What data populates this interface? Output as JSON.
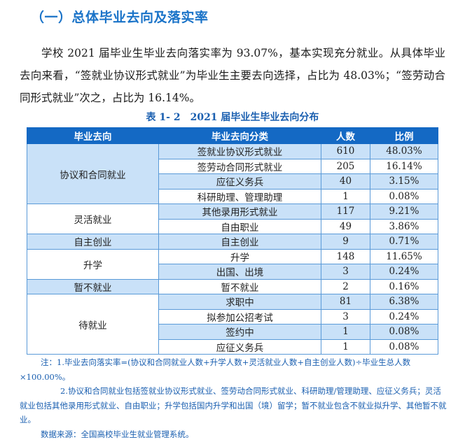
{
  "section": {
    "title": "（一）总体毕业去向及落实率"
  },
  "paragraph": "学校 2021 届毕业生毕业去向落实率为 93.07%，基本实现充分就业。从具体毕业去向来看，“签就业协议形式就业”为毕业生主要去向选择，占比为 48.03%；“签劳动合同形式就业”次之，占比为 16.14%。",
  "table": {
    "caption": "表 1- 2　2021 届毕业生毕业去向分布",
    "headers": [
      "毕业去向",
      "毕业去向分类",
      "人数",
      "比例"
    ],
    "colors": {
      "header_bg": "#1469c4",
      "shaded_bg": "#c9e1f8",
      "border": "#5a9ad8"
    },
    "groups": [
      {
        "label": "协议和合同就业",
        "rows": [
          {
            "category": "签就业协议形式就业",
            "count": "610",
            "percent": "48.03%"
          },
          {
            "category": "签劳动合同形式就业",
            "count": "205",
            "percent": "16.14%"
          },
          {
            "category": "应征义务兵",
            "count": "40",
            "percent": "3.15%"
          },
          {
            "category": "科研助理、管理助理",
            "count": "1",
            "percent": "0.08%"
          }
        ]
      },
      {
        "label": "灵活就业",
        "rows": [
          {
            "category": "其他录用形式就业",
            "count": "117",
            "percent": "9.21%"
          },
          {
            "category": "自由职业",
            "count": "49",
            "percent": "3.86%"
          }
        ]
      },
      {
        "label": "自主创业",
        "rows": [
          {
            "category": "自主创业",
            "count": "9",
            "percent": "0.71%"
          }
        ]
      },
      {
        "label": "升学",
        "rows": [
          {
            "category": "升学",
            "count": "148",
            "percent": "11.65%"
          },
          {
            "category": "出国、出境",
            "count": "3",
            "percent": "0.24%"
          }
        ]
      },
      {
        "label": "暂不就业",
        "rows": [
          {
            "category": "暂不就业",
            "count": "2",
            "percent": "0.16%"
          }
        ]
      },
      {
        "label": "待就业",
        "rows": [
          {
            "category": "求职中",
            "count": "81",
            "percent": "6.38%"
          },
          {
            "category": "拟参加公招考试",
            "count": "3",
            "percent": "0.24%"
          },
          {
            "category": "签约中",
            "count": "1",
            "percent": "0.08%"
          },
          {
            "category": "应征义务兵",
            "count": "1",
            "percent": "0.08%"
          }
        ]
      }
    ]
  },
  "notes": {
    "note1": "注：1.毕业去向落实率=(协议和合同就业人数+升学人数+灵活就业人数+自主创业人数)÷毕业生总人数×100.00%。",
    "note2": "2.协议和合同就业包括签就业协议形式就业、签劳动合同形式就业、科研助理/管理助理、应征义务兵；灵活就业包括其他录用形式就业、自由职业；升学包括国内升学和出国（境）留学；暂不就业包含不就业拟升学、其他暂不就业。",
    "source": "数据来源：全国高校毕业生就业管理系统。"
  }
}
